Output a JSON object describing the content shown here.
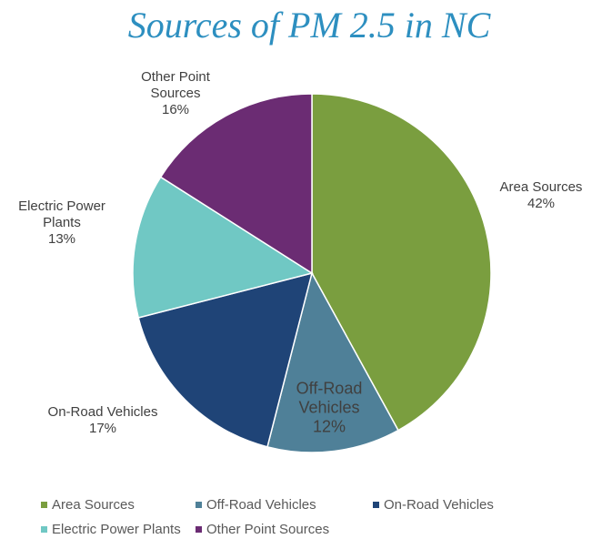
{
  "chart_data": {
    "type": "pie",
    "title": "Sources of PM 2.5 in NC",
    "categories": [
      "Area Sources",
      "Off-Road Vehicles",
      "On-Road Vehicles",
      "Electric Power Plants",
      "Other Point Sources"
    ],
    "values": [
      42,
      12,
      17,
      13,
      16
    ],
    "value_labels": [
      "42%",
      "12%",
      "17%",
      "13%",
      "16%"
    ],
    "colors": [
      "#7a9e3f",
      "#4f8098",
      "#1f4477",
      "#70c8c4",
      "#6b2c73"
    ],
    "legend": "bottom"
  }
}
